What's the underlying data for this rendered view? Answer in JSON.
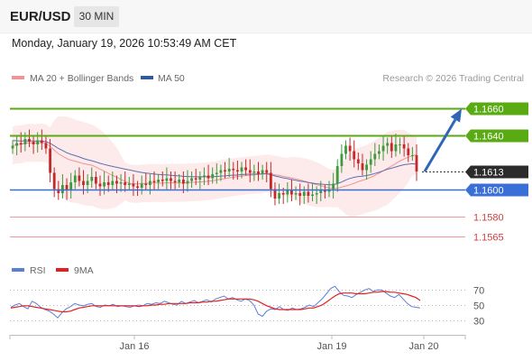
{
  "header": {
    "symbol": "EUR/USD",
    "timeframe": "30 MIN",
    "datetime": "Monday, January 19, 2026 10:53:49 AM CET"
  },
  "credit": "Research © 2026 Trading Central",
  "colors": {
    "ma20": "#f09494",
    "ma50": "#5c6fb5",
    "bb_fill": "#fde6e6",
    "up_candle": "#3c9b3c",
    "down_candle": "#c62828",
    "target_green": "#5aaa14",
    "pivot_blue": "#3a6fd8",
    "support_red": "#f29a9a",
    "arrow": "#2f66b8",
    "rsi": "#5b7fd6",
    "rsi_ma": "#e12020"
  },
  "chart_data": [
    {
      "type": "candlestick",
      "title": "EUR/USD 30 MIN",
      "x_labels": [
        "Jan 16",
        "Jan 19",
        "Jan 20"
      ],
      "legend": [
        "MA 20 + Bollinger Bands",
        "MA 50"
      ],
      "y_range": [
        1.1553,
        1.1677
      ],
      "current_price": "1.1613",
      "levels": [
        {
          "price": 1.166,
          "label": "1.1660",
          "kind": "target"
        },
        {
          "price": 1.164,
          "label": "1.1640",
          "kind": "target"
        },
        {
          "price": 1.16,
          "label": "1.1600",
          "kind": "pivot"
        },
        {
          "price": 1.158,
          "label": "1.1580",
          "kind": "support"
        },
        {
          "price": 1.1565,
          "label": "1.1565",
          "kind": "support"
        }
      ],
      "forecast_arrow": {
        "from": 1.1613,
        "to": 1.166
      },
      "closes": [
        1.1632,
        1.1634,
        1.1633,
        1.1637,
        1.1635,
        1.1633,
        1.1636,
        1.1634,
        1.163,
        1.1612,
        1.16,
        1.1597,
        1.1603,
        1.1599,
        1.1605,
        1.161,
        1.1606,
        1.1603,
        1.1606,
        1.1609,
        1.1604,
        1.1602,
        1.1605,
        1.1603,
        1.1606,
        1.1604,
        1.1605,
        1.1603,
        1.1604,
        1.1602,
        1.1601,
        1.1604,
        1.1603,
        1.1606,
        1.1605,
        1.1607,
        1.1606,
        1.1608,
        1.1606,
        1.1605,
        1.1607,
        1.1604,
        1.1606,
        1.1608,
        1.1607,
        1.1609,
        1.161,
        1.1608,
        1.1611,
        1.1612,
        1.1614,
        1.1613,
        1.1615,
        1.1614,
        1.1613,
        1.1616,
        1.1614,
        1.1612,
        1.1613,
        1.1611,
        1.1614,
        1.1612,
        1.16,
        1.1593,
        1.1597,
        1.1596,
        1.1599,
        1.1596,
        1.1597,
        1.1595,
        1.1598,
        1.1595,
        1.1596,
        1.1597,
        1.1599,
        1.1598,
        1.16,
        1.1604,
        1.1617,
        1.1626,
        1.1632,
        1.1628,
        1.1622,
        1.1619,
        1.1614,
        1.1618,
        1.1622,
        1.1626,
        1.1628,
        1.1632,
        1.1634,
        1.1628,
        1.1633,
        1.1633,
        1.163,
        1.1625,
        1.1625,
        1.1613
      ]
    },
    {
      "type": "line",
      "title": "RSI",
      "legend": [
        "RSI",
        "9MA"
      ],
      "y_ticks": [
        70,
        50,
        30
      ],
      "y_range": [
        14,
        86
      ],
      "rsi": [
        47,
        50,
        52,
        48,
        45,
        55,
        52,
        47,
        44,
        42,
        38,
        33,
        40,
        45,
        48,
        52,
        50,
        49,
        51,
        52,
        48,
        47,
        50,
        49,
        51,
        48,
        49,
        48,
        47,
        49,
        50,
        49,
        52,
        51,
        53,
        52,
        55,
        53,
        51,
        50,
        55,
        52,
        54,
        56,
        53,
        55,
        57,
        54,
        58,
        60,
        62,
        58,
        60,
        57,
        55,
        58,
        56,
        50,
        38,
        35,
        42,
        45,
        44,
        48,
        44,
        43,
        46,
        44,
        45,
        47,
        50,
        48,
        53,
        58,
        65,
        72,
        75,
        68,
        63,
        62,
        60,
        64,
        67,
        70,
        72,
        68,
        70,
        70,
        66,
        62,
        60,
        64,
        58,
        52,
        48,
        47,
        46
      ],
      "rsi_ma": [
        46,
        47,
        48,
        49,
        49,
        48,
        47,
        46,
        45,
        44,
        43,
        42,
        41,
        41,
        42,
        44,
        46,
        47,
        48,
        49,
        49,
        49,
        49,
        49,
        49,
        49,
        49,
        49,
        49,
        49,
        48,
        49,
        49,
        50,
        50,
        51,
        51,
        52,
        52,
        52,
        52,
        52,
        53,
        53,
        53,
        54,
        54,
        55,
        55,
        56,
        57,
        58,
        58,
        58,
        58,
        58,
        58,
        57,
        55,
        52,
        49,
        47,
        45,
        44,
        44,
        44,
        44,
        44,
        44,
        45,
        46,
        46,
        48,
        50,
        54,
        58,
        62,
        65,
        66,
        66,
        66,
        65,
        65,
        65,
        66,
        67,
        67,
        68,
        68,
        67,
        67,
        66,
        65,
        64,
        62,
        60,
        56
      ]
    }
  ]
}
